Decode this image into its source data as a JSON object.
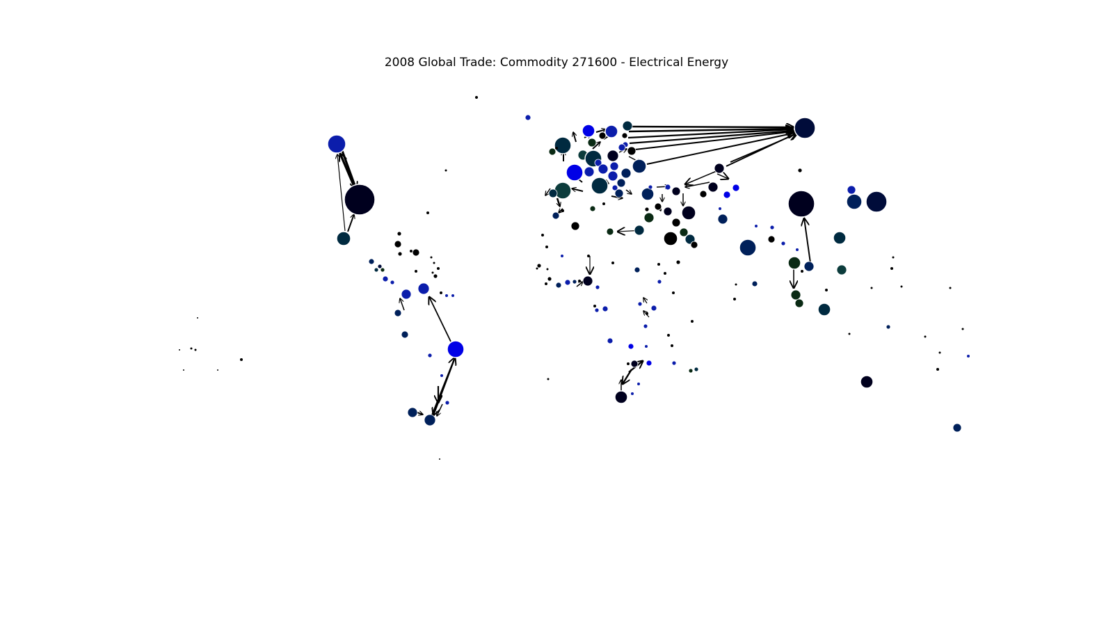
{
  "title": "2008 Global Trade: Commodity 271600 - Electrical Energy",
  "colors": {
    "edge": "#000000",
    "node_stroke": "#ffffff",
    "background": "#ffffff"
  },
  "node_palette": [
    "#000000",
    "#00001e",
    "#000c3a",
    "#00205a",
    "#0b1dab",
    "#0000e6",
    "#002a40",
    "#001a10",
    "#0a2a14",
    "#0c3c3c"
  ]
}
